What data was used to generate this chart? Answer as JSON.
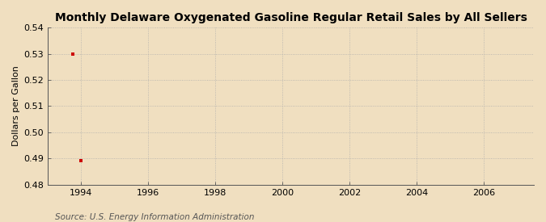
{
  "title": "Monthly Delaware Oxygenated Gasoline Regular Retail Sales by All Sellers",
  "ylabel": "Dollars per Gallon",
  "source": "Source: U.S. Energy Information Administration",
  "background_color": "#f0dfc0",
  "plot_bg_color": "#f0dfc0",
  "x_data": [
    1993.75,
    1994.0
  ],
  "y_data": [
    0.53,
    0.489
  ],
  "point_color": "#cc0000",
  "point_marker": "s",
  "point_size": 3,
  "xlim": [
    1993.0,
    2007.5
  ],
  "ylim": [
    0.48,
    0.54
  ],
  "xticks": [
    1994,
    1996,
    1998,
    2000,
    2002,
    2004,
    2006
  ],
  "yticks": [
    0.48,
    0.49,
    0.5,
    0.51,
    0.52,
    0.53,
    0.54
  ],
  "grid_color": "#aaaaaa",
  "title_fontsize": 10,
  "label_fontsize": 8,
  "tick_fontsize": 8,
  "source_fontsize": 7.5
}
